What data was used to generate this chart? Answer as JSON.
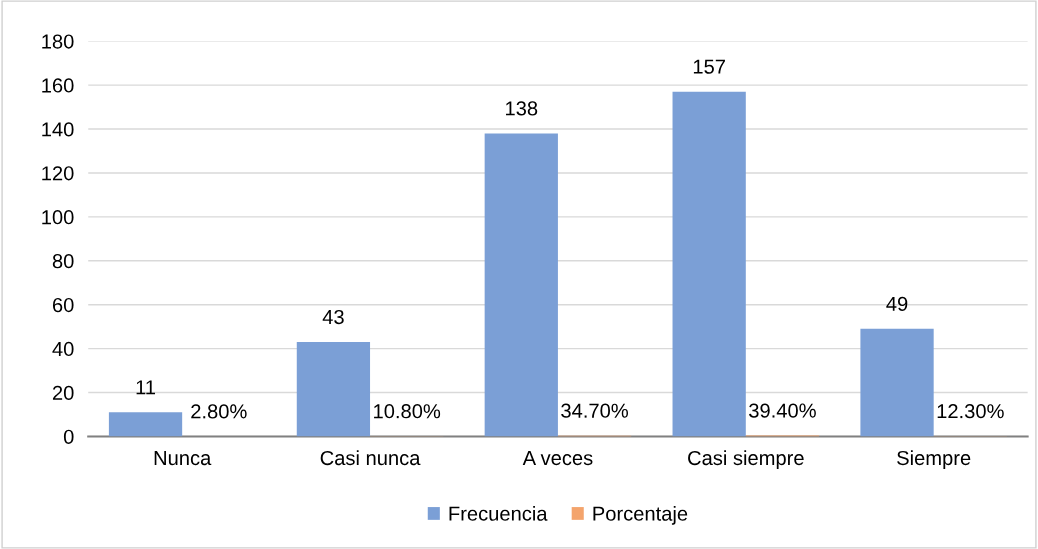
{
  "chart_data": {
    "type": "bar",
    "categories": [
      "Nunca",
      "Casi nunca",
      "A veces",
      "Casi siempre",
      "Siempre"
    ],
    "series": [
      {
        "name": "Frecuencia",
        "color": "#7b9fd6",
        "values": [
          11,
          43,
          138,
          157,
          49
        ],
        "value_labels": [
          "11",
          "43",
          "138",
          "157",
          "49"
        ]
      },
      {
        "name": "Porcentaje",
        "color": "#f4a46c",
        "values": [
          0.028,
          0.108,
          0.347,
          0.394,
          0.123
        ],
        "value_labels": [
          "2.80%",
          "10.80%",
          "34.70%",
          "39.40%",
          "12.30%"
        ]
      }
    ],
    "ylim": [
      0,
      180
    ],
    "yticks": [
      0,
      20,
      40,
      60,
      80,
      100,
      120,
      140,
      160,
      180
    ],
    "grid": "y",
    "legend": "bottom"
  }
}
